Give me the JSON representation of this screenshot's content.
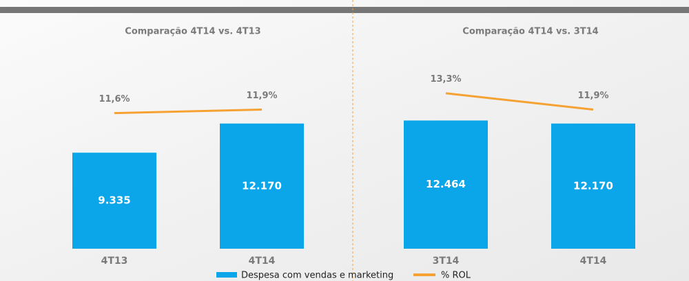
{
  "chart_data": [
    {
      "type": "bar",
      "title": "Comparação 4T14 vs. 4T13",
      "categories": [
        "4T13",
        "4T14"
      ],
      "series": [
        {
          "name": "Despesa com vendas e marketing",
          "color": "#0ba5e9",
          "values": [
            9335,
            12170
          ],
          "value_labels": [
            "9.335",
            "12.170"
          ]
        },
        {
          "name": "% ROL",
          "color": "#f5a233",
          "type": "line",
          "axis": "y2",
          "values": [
            11.6,
            11.9
          ],
          "value_labels": [
            "11,6%",
            "11,9%"
          ]
        }
      ],
      "ylim": [
        0,
        17500
      ],
      "y2lim": [
        0,
        15.4
      ]
    },
    {
      "type": "bar",
      "title": "Comparação 4T14 vs. 3T14",
      "categories": [
        "3T14",
        "4T14"
      ],
      "series": [
        {
          "name": "Despesa com vendas e marketing",
          "color": "#0ba5e9",
          "values": [
            12464,
            12170
          ],
          "value_labels": [
            "12.464",
            "12.170"
          ]
        },
        {
          "name": "% ROL",
          "color": "#f5a233",
          "type": "line",
          "axis": "y2",
          "values": [
            13.3,
            11.9
          ],
          "value_labels": [
            "13,3%",
            "11,9%"
          ]
        }
      ],
      "ylim": [
        0,
        17500
      ],
      "y2lim": [
        0,
        15.4
      ]
    }
  ]
}
